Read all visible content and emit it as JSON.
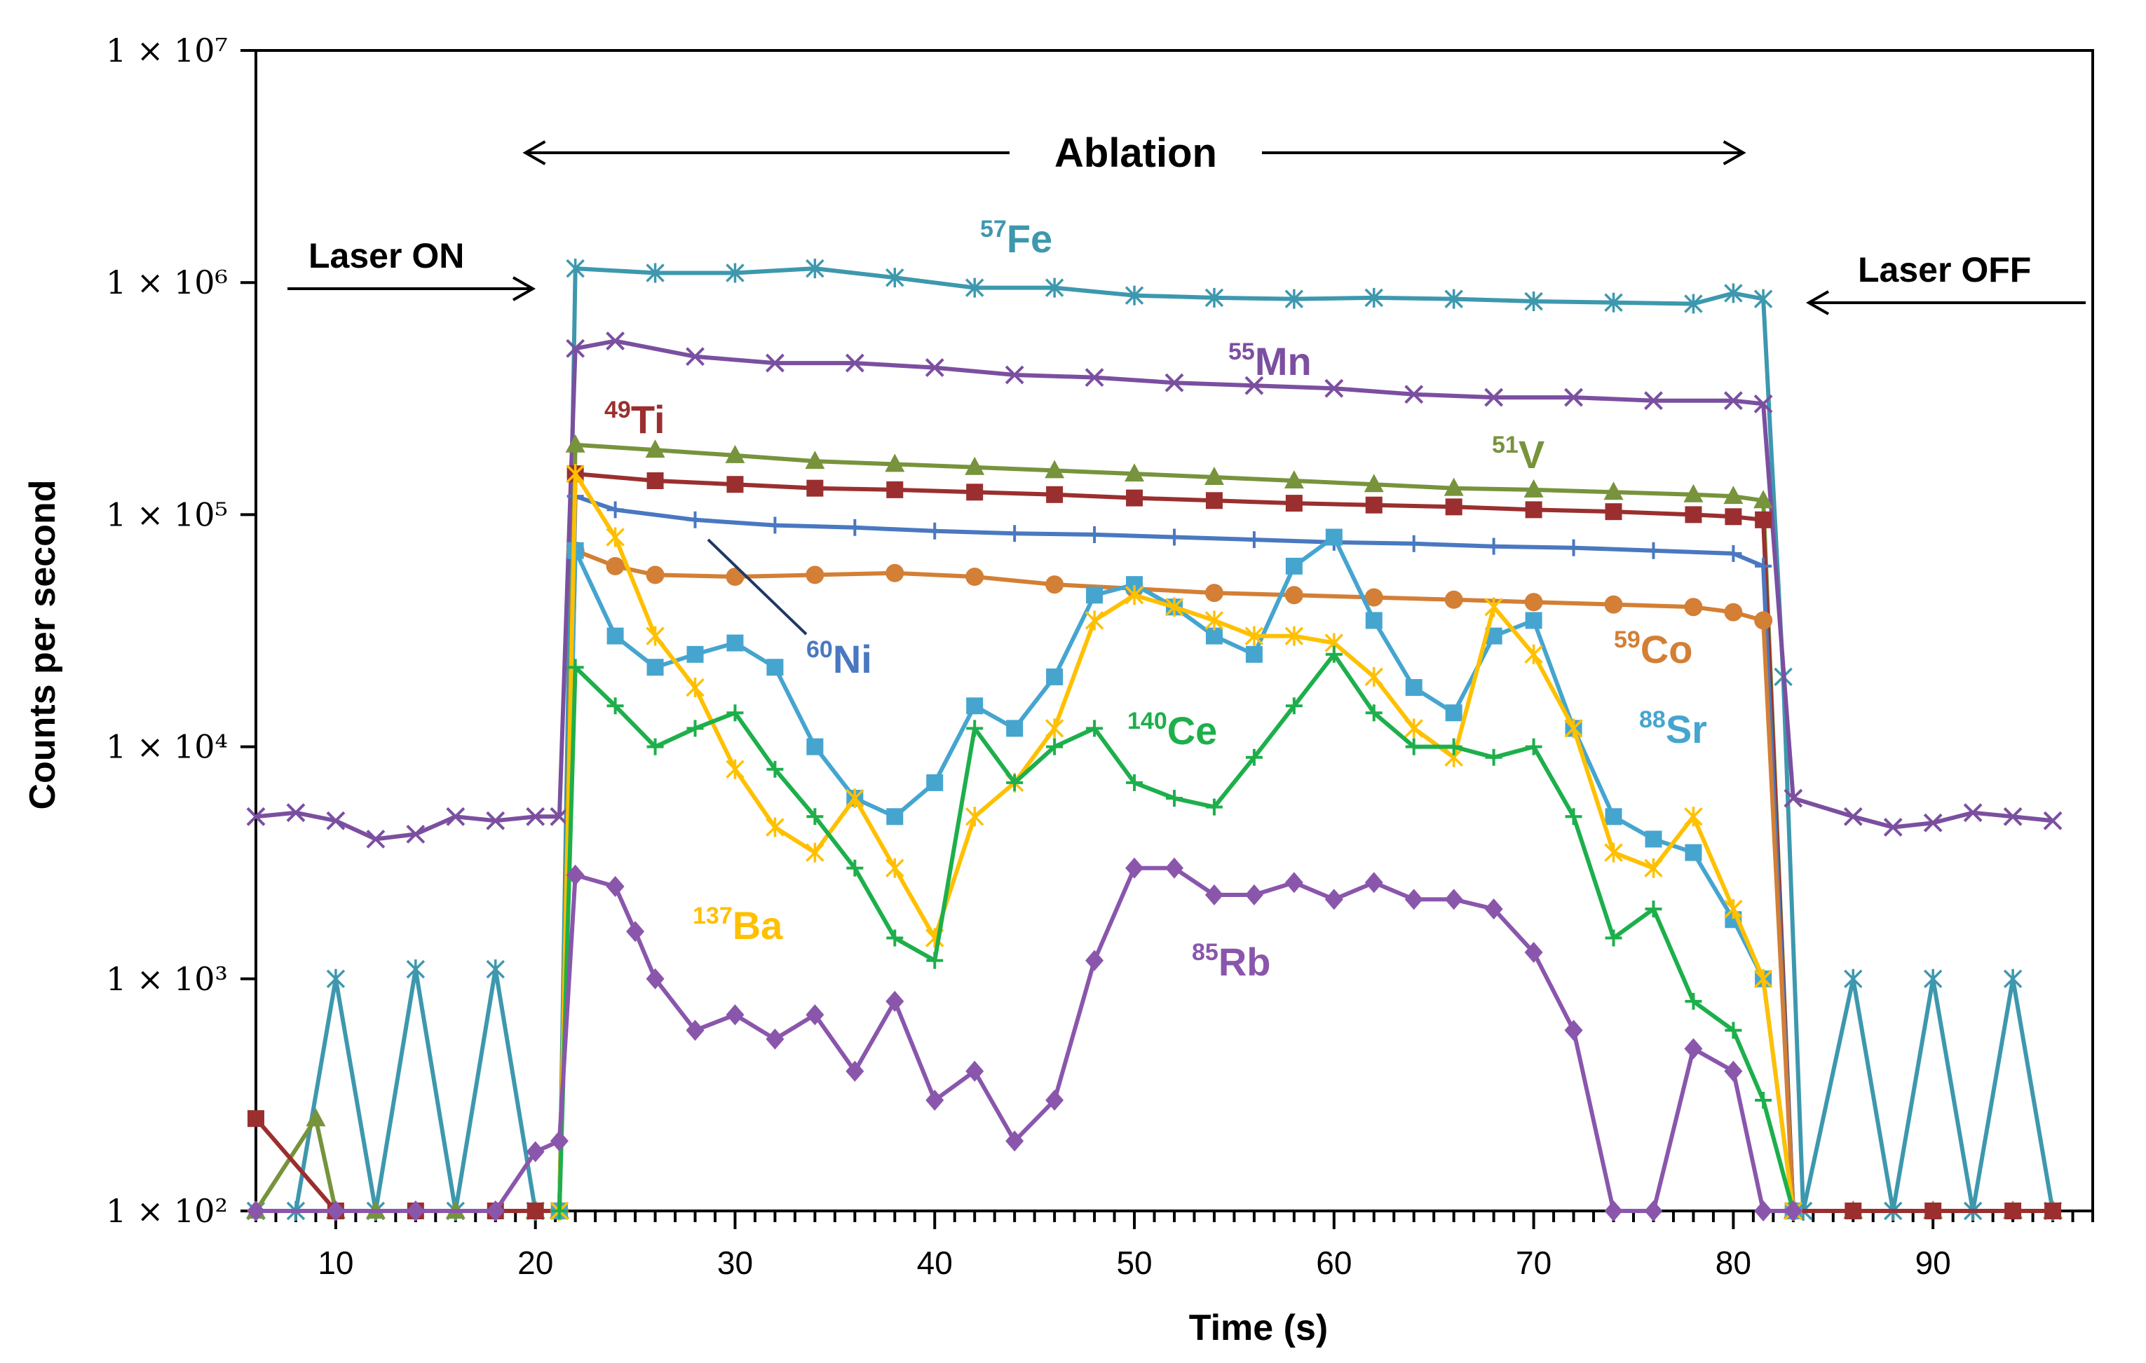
{
  "chart_data": {
    "type": "line",
    "xlabel": "Time (s)",
    "ylabel": "Counts per second",
    "xlim": [
      6,
      98
    ],
    "ylim": [
      100,
      10000000
    ],
    "yscale": "log",
    "x_ticks": [
      10,
      20,
      30,
      40,
      50,
      60,
      70,
      80,
      90
    ],
    "y_ticks": [
      {
        "value": 100,
        "label": "1 × 10²"
      },
      {
        "value": 1000,
        "label": "1 × 10³"
      },
      {
        "value": 10000,
        "label": "1 × 10⁴"
      },
      {
        "value": 100000,
        "label": "1 × 10⁵"
      },
      {
        "value": 1000000,
        "label": "1 × 10⁶"
      },
      {
        "value": 10000000,
        "label": "1 × 10⁷"
      }
    ],
    "annotations": {
      "ablation": "Ablation",
      "laser_on": "Laser ON",
      "laser_off": "Laser OFF",
      "ablation_range": [
        19.5,
        80.5
      ]
    },
    "series": [
      {
        "name": "57Fe",
        "mass": "57",
        "symbol": "Fe",
        "color": "#3D98AE",
        "marker": "star",
        "x": [
          6,
          8,
          10,
          12,
          14,
          16,
          18,
          20,
          21.2,
          22,
          26,
          30,
          34,
          38,
          42,
          46,
          50,
          54,
          58,
          62,
          66,
          70,
          74,
          78,
          80,
          81.5,
          82.5,
          83.5,
          86,
          88,
          90,
          92,
          94,
          96
        ],
        "y": [
          100,
          100,
          1000,
          100,
          1100,
          100,
          1100,
          100,
          100,
          1150000,
          1100000,
          1100000,
          1150000,
          1050000,
          950000,
          950000,
          880000,
          860000,
          850000,
          860000,
          850000,
          830000,
          820000,
          810000,
          900000,
          850000,
          20000,
          100,
          1000,
          100,
          1000,
          100,
          1000,
          100
        ]
      },
      {
        "name": "55Mn",
        "mass": "55",
        "symbol": "Mn",
        "color": "#7B4FA0",
        "marker": "x",
        "x": [
          6,
          8,
          10,
          12,
          14,
          16,
          18,
          20,
          21.2,
          22,
          24,
          28,
          32,
          36,
          40,
          44,
          48,
          52,
          56,
          60,
          64,
          68,
          72,
          76,
          80,
          81.5,
          83,
          86,
          88,
          90,
          92,
          94,
          96
        ],
        "y": [
          5000,
          5200,
          4800,
          4000,
          4200,
          5000,
          4800,
          5000,
          5000,
          520000,
          560000,
          480000,
          450000,
          450000,
          430000,
          400000,
          390000,
          370000,
          360000,
          350000,
          330000,
          320000,
          320000,
          310000,
          310000,
          300000,
          6000,
          5000,
          4500,
          4700,
          5200,
          5000,
          4800
        ]
      },
      {
        "name": "51V",
        "mass": "51",
        "symbol": "V",
        "color": "#77933C",
        "marker": "triangle",
        "x": [
          6,
          9,
          10,
          12,
          16,
          20,
          21.2,
          22,
          26,
          30,
          34,
          38,
          42,
          46,
          50,
          54,
          58,
          62,
          66,
          70,
          74,
          78,
          80,
          81.5,
          83,
          86,
          90,
          94,
          96
        ],
        "y": [
          100,
          250,
          100,
          100,
          100,
          100,
          100,
          200000,
          190000,
          180000,
          170000,
          165000,
          160000,
          155000,
          150000,
          145000,
          140000,
          135000,
          130000,
          128000,
          125000,
          122000,
          120000,
          115000,
          100,
          100,
          100,
          100,
          100
        ]
      },
      {
        "name": "49Ti",
        "mass": "49",
        "symbol": "Ti",
        "color": "#9B2F2F",
        "marker": "square",
        "x": [
          6,
          10,
          14,
          18,
          20,
          21.2,
          22,
          26,
          30,
          34,
          38,
          42,
          46,
          50,
          54,
          58,
          62,
          66,
          70,
          74,
          78,
          80,
          81.5,
          83,
          86,
          90,
          94,
          96
        ],
        "y": [
          250,
          100,
          100,
          100,
          100,
          100,
          150000,
          140000,
          135000,
          130000,
          128000,
          125000,
          122000,
          118000,
          115000,
          112000,
          110000,
          108000,
          105000,
          103000,
          100000,
          98000,
          95000,
          100,
          100,
          100,
          100,
          100
        ]
      },
      {
        "name": "60Ni",
        "mass": "60",
        "symbol": "Ni",
        "color": "#4A78C0",
        "marker": "plus",
        "x": [
          21.2,
          22,
          24,
          28,
          32,
          36,
          40,
          44,
          48,
          52,
          56,
          60,
          64,
          68,
          72,
          76,
          80,
          81.5,
          83
        ],
        "y": [
          100,
          120000,
          105000,
          95000,
          90000,
          88000,
          85000,
          83000,
          82000,
          80000,
          78000,
          76000,
          75000,
          73000,
          72000,
          70000,
          68000,
          60000,
          100
        ]
      },
      {
        "name": "59Co",
        "mass": "59",
        "symbol": "Co",
        "color": "#D37F35",
        "marker": "circle",
        "x": [
          21.2,
          22,
          24,
          26,
          30,
          34,
          38,
          42,
          46,
          50,
          54,
          58,
          62,
          66,
          70,
          74,
          78,
          80,
          81.5,
          83
        ],
        "y": [
          100,
          70000,
          60000,
          55000,
          54000,
          55000,
          56000,
          54000,
          50000,
          48000,
          46000,
          45000,
          44000,
          43000,
          42000,
          41000,
          40000,
          38000,
          35000,
          100
        ]
      },
      {
        "name": "88Sr",
        "mass": "88",
        "symbol": "Sr",
        "color": "#45A5CF",
        "marker": "square",
        "x": [
          21.2,
          22,
          24,
          26,
          28,
          30,
          32,
          34,
          36,
          38,
          40,
          42,
          44,
          46,
          48,
          50,
          52,
          54,
          56,
          58,
          60,
          62,
          64,
          66,
          68,
          70,
          72,
          74,
          76,
          78,
          80,
          81.5,
          83
        ],
        "y": [
          100,
          70000,
          30000,
          22000,
          25000,
          28000,
          22000,
          10000,
          6000,
          5000,
          7000,
          15000,
          12000,
          20000,
          45000,
          50000,
          40000,
          30000,
          25000,
          60000,
          80000,
          35000,
          18000,
          14000,
          30000,
          35000,
          12000,
          5000,
          4000,
          3500,
          1800,
          1000,
          100
        ]
      },
      {
        "name": "137Ba",
        "mass": "137",
        "symbol": "Ba",
        "color": "#FFC000",
        "marker": "star",
        "x": [
          21.2,
          22,
          24,
          26,
          28,
          30,
          32,
          34,
          36,
          38,
          40,
          42,
          44,
          46,
          48,
          50,
          52,
          54,
          56,
          58,
          60,
          62,
          64,
          66,
          68,
          70,
          72,
          74,
          76,
          78,
          80,
          81.5,
          83
        ],
        "y": [
          100,
          150000,
          80000,
          30000,
          18000,
          8000,
          4500,
          3500,
          6000,
          3000,
          1500,
          5000,
          7000,
          12000,
          35000,
          45000,
          40000,
          35000,
          30000,
          30000,
          28000,
          20000,
          12000,
          9000,
          40000,
          25000,
          12000,
          3500,
          3000,
          5000,
          2000,
          1000,
          100
        ]
      },
      {
        "name": "140Ce",
        "mass": "140",
        "symbol": "Ce",
        "color": "#1DAF4B",
        "marker": "plus",
        "x": [
          21.2,
          22,
          24,
          26,
          28,
          30,
          32,
          34,
          36,
          38,
          40,
          42,
          44,
          46,
          48,
          50,
          52,
          54,
          56,
          58,
          60,
          62,
          64,
          66,
          68,
          70,
          72,
          74,
          76,
          78,
          80,
          81.5,
          83
        ],
        "y": [
          100,
          22000,
          15000,
          10000,
          12000,
          14000,
          8000,
          5000,
          3000,
          1500,
          1200,
          12000,
          7000,
          10000,
          12000,
          7000,
          6000,
          5500,
          9000,
          15000,
          25000,
          14000,
          10000,
          10000,
          9000,
          10000,
          5000,
          1500,
          2000,
          800,
          600,
          300,
          100
        ]
      },
      {
        "name": "85Rb",
        "mass": "85",
        "symbol": "Rb",
        "color": "#8A56AC",
        "marker": "diamond",
        "x": [
          6,
          10,
          14,
          18,
          20,
          21.2,
          22,
          24,
          25,
          26,
          28,
          30,
          32,
          34,
          36,
          38,
          40,
          42,
          44,
          46,
          48,
          50,
          52,
          54,
          56,
          58,
          60,
          62,
          64,
          66,
          68,
          70,
          72,
          74,
          76,
          78,
          80,
          81.5,
          83
        ],
        "y": [
          100,
          100,
          100,
          100,
          180,
          200,
          2800,
          2500,
          1600,
          1000,
          600,
          700,
          550,
          700,
          400,
          800,
          300,
          400,
          200,
          300,
          1200,
          3000,
          3000,
          2300,
          2300,
          2600,
          2200,
          2600,
          2200,
          2200,
          2000,
          1300,
          600,
          100,
          100,
          500,
          400,
          100,
          100
        ]
      }
    ]
  }
}
